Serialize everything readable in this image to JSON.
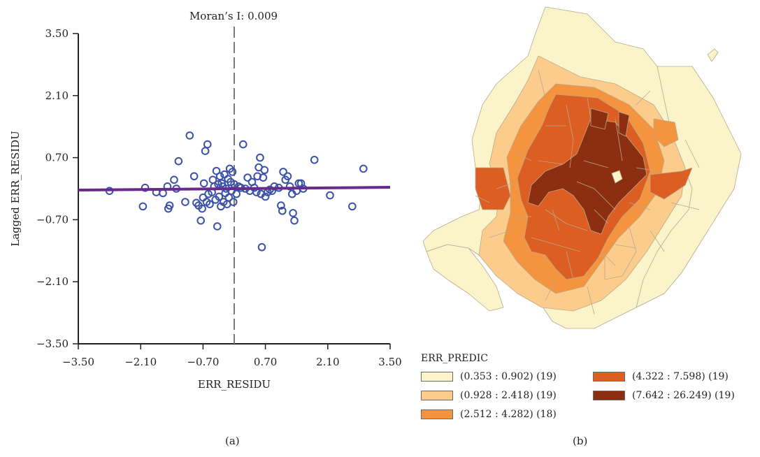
{
  "chart_data": [
    {
      "type": "scatter",
      "title": "Moran’s I: 0.009",
      "xlabel": "ERR_RESIDU",
      "ylabel": "Lagged ERR_RESIDU",
      "xlim": [
        -3.5,
        3.5
      ],
      "ylim": [
        -3.5,
        3.5
      ],
      "xticks": [
        "−3.50",
        "−2.10",
        "−0.70",
        "0.70",
        "2.10",
        "3.50"
      ],
      "yticks": [
        "3.50",
        "2.10",
        "0.70",
        "−0.70",
        "−2.10",
        "−3.50"
      ],
      "grid": false,
      "zero_line_x": 0.0,
      "regression": {
        "slope": 0.009,
        "intercept": 0.0,
        "color": "#6a2a8c"
      },
      "point_color": "#3a52a8",
      "points": [
        [
          -2.8,
          -0.05
        ],
        [
          -2.05,
          -0.4
        ],
        [
          -2.0,
          0.02
        ],
        [
          -1.75,
          -0.08
        ],
        [
          -1.6,
          -0.1
        ],
        [
          -1.5,
          0.05
        ],
        [
          -1.48,
          -0.45
        ],
        [
          -1.45,
          -0.38
        ],
        [
          -1.35,
          0.2
        ],
        [
          -1.3,
          0.0
        ],
        [
          -1.25,
          0.62
        ],
        [
          -1.1,
          -0.3
        ],
        [
          -1.0,
          1.2
        ],
        [
          -0.9,
          0.28
        ],
        [
          -0.85,
          -0.32
        ],
        [
          -0.8,
          -0.38
        ],
        [
          -0.75,
          -0.72
        ],
        [
          -0.72,
          -0.45
        ],
        [
          -0.7,
          -0.2
        ],
        [
          -0.68,
          0.12
        ],
        [
          -0.65,
          0.85
        ],
        [
          -0.62,
          -0.3
        ],
        [
          -0.6,
          1.0
        ],
        [
          -0.58,
          -0.12
        ],
        [
          -0.55,
          -0.35
        ],
        [
          -0.5,
          -0.08
        ],
        [
          -0.48,
          0.2
        ],
        [
          -0.45,
          0.05
        ],
        [
          -0.42,
          -0.25
        ],
        [
          -0.4,
          0.4
        ],
        [
          -0.38,
          -0.85
        ],
        [
          -0.36,
          0.1
        ],
        [
          -0.34,
          -0.18
        ],
        [
          -0.32,
          0.28
        ],
        [
          -0.3,
          -0.4
        ],
        [
          -0.28,
          0.12
        ],
        [
          -0.26,
          0.05
        ],
        [
          -0.24,
          -0.3
        ],
        [
          -0.22,
          0.32
        ],
        [
          -0.2,
          -0.1
        ],
        [
          -0.18,
          0.0
        ],
        [
          -0.16,
          -0.35
        ],
        [
          -0.14,
          0.22
        ],
        [
          -0.12,
          -0.2
        ],
        [
          -0.1,
          0.45
        ],
        [
          -0.08,
          0.15
        ],
        [
          -0.06,
          -0.05
        ],
        [
          -0.04,
          0.38
        ],
        [
          -0.02,
          -0.3
        ],
        [
          0.0,
          0.1
        ],
        [
          0.05,
          -0.12
        ],
        [
          0.1,
          0.05
        ],
        [
          0.15,
          0.02
        ],
        [
          0.2,
          1.0
        ],
        [
          0.25,
          0.0
        ],
        [
          0.3,
          0.25
        ],
        [
          0.35,
          -0.05
        ],
        [
          0.4,
          0.15
        ],
        [
          0.45,
          0.02
        ],
        [
          0.5,
          -0.08
        ],
        [
          0.52,
          0.28
        ],
        [
          0.55,
          0.48
        ],
        [
          0.58,
          0.7
        ],
        [
          0.6,
          -0.12
        ],
        [
          0.62,
          -1.32
        ],
        [
          0.65,
          0.25
        ],
        [
          0.68,
          0.42
        ],
        [
          0.7,
          -0.18
        ],
        [
          0.75,
          -0.08
        ],
        [
          0.8,
          -0.02
        ],
        [
          0.85,
          -0.05
        ],
        [
          0.9,
          0.05
        ],
        [
          1.0,
          0.02
        ],
        [
          1.05,
          -0.38
        ],
        [
          1.08,
          -0.5
        ],
        [
          1.1,
          0.38
        ],
        [
          1.15,
          0.2
        ],
        [
          1.2,
          0.28
        ],
        [
          1.25,
          0.05
        ],
        [
          1.3,
          -0.12
        ],
        [
          1.32,
          -0.55
        ],
        [
          1.35,
          -0.72
        ],
        [
          1.4,
          -0.05
        ],
        [
          1.45,
          0.12
        ],
        [
          1.5,
          0.12
        ],
        [
          1.55,
          0.0
        ],
        [
          1.8,
          0.65
        ],
        [
          2.15,
          -0.15
        ],
        [
          2.65,
          -0.4
        ],
        [
          2.9,
          0.45
        ]
      ]
    },
    {
      "type": "choropleth",
      "legend_title": "ERR_PREDIC",
      "classes": [
        {
          "label": "(0.353 : 0.902) (19)",
          "color": "#fbf3c9"
        },
        {
          "label": "(0.928 : 2.418) (19)",
          "color": "#fccc8d"
        },
        {
          "label": "(2.512 : 4.282) (18)",
          "color": "#f4943f"
        },
        {
          "label": "(4.322 : 7.598) (19)",
          "color": "#dc5e22"
        },
        {
          "label": "(7.642 : 26.249) (19)",
          "color": "#8c2f10"
        }
      ]
    }
  ],
  "captions": {
    "a": "(a)",
    "b": "(b)"
  }
}
